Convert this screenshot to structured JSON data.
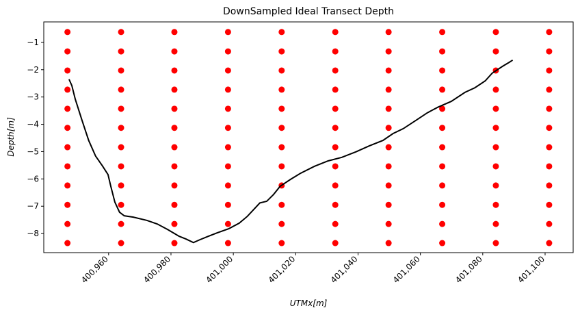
{
  "chart_data": {
    "type": "scatter",
    "title": "DownSampled Ideal Transect Depth",
    "xlabel": "UTMx[m]",
    "ylabel": "Depth[m]",
    "xlim": [
      400939.2,
      401109.0
    ],
    "ylim": [
      -8.7,
      -0.25
    ],
    "xticks": [
      {
        "value": 400960,
        "label": "400,960"
      },
      {
        "value": 400980,
        "label": "400,980"
      },
      {
        "value": 401000,
        "label": "401,000"
      },
      {
        "value": 401020,
        "label": "401,020"
      },
      {
        "value": 401040,
        "label": "401,040"
      },
      {
        "value": 401060,
        "label": "401,060"
      },
      {
        "value": 401080,
        "label": "401,080"
      },
      {
        "value": 401100,
        "label": "401,100"
      }
    ],
    "yticks": [
      {
        "value": -1,
        "label": "−1"
      },
      {
        "value": -2,
        "label": "−2"
      },
      {
        "value": -3,
        "label": "−3"
      },
      {
        "value": -4,
        "label": "−4"
      },
      {
        "value": -5,
        "label": "−5"
      },
      {
        "value": -6,
        "label": "−6"
      },
      {
        "value": -7,
        "label": "−7"
      },
      {
        "value": -8,
        "label": "−8"
      }
    ],
    "series": [
      {
        "type": "scatter",
        "color": "#ff0000",
        "x": [
          400946.8,
          400946.8,
          400946.8,
          400946.8,
          400946.8,
          400946.8,
          400946.8,
          400946.8,
          400946.8,
          400946.8,
          400946.8,
          400946.8,
          400964.0,
          400964.0,
          400964.0,
          400964.0,
          400964.0,
          400964.0,
          400964.0,
          400964.0,
          400964.0,
          400964.0,
          400964.0,
          400964.0,
          400981.1,
          400981.1,
          400981.1,
          400981.1,
          400981.1,
          400981.1,
          400981.1,
          400981.1,
          400981.1,
          400981.1,
          400981.1,
          400981.1,
          400998.3,
          400998.3,
          400998.3,
          400998.3,
          400998.3,
          400998.3,
          400998.3,
          400998.3,
          400998.3,
          400998.3,
          400998.3,
          400998.3,
          401015.5,
          401015.5,
          401015.5,
          401015.5,
          401015.5,
          401015.5,
          401015.5,
          401015.5,
          401015.5,
          401015.5,
          401015.5,
          401015.5,
          401032.7,
          401032.7,
          401032.7,
          401032.7,
          401032.7,
          401032.7,
          401032.7,
          401032.7,
          401032.7,
          401032.7,
          401032.7,
          401032.7,
          401049.8,
          401049.8,
          401049.8,
          401049.8,
          401049.8,
          401049.8,
          401049.8,
          401049.8,
          401049.8,
          401049.8,
          401049.8,
          401049.8,
          401067.0,
          401067.0,
          401067.0,
          401067.0,
          401067.0,
          401067.0,
          401067.0,
          401067.0,
          401067.0,
          401067.0,
          401067.0,
          401067.0,
          401084.2,
          401084.2,
          401084.2,
          401084.2,
          401084.2,
          401084.2,
          401084.2,
          401084.2,
          401084.2,
          401084.2,
          401084.2,
          401084.2,
          401101.3,
          401101.3,
          401101.3,
          401101.3,
          401101.3,
          401101.3,
          401101.3,
          401101.3,
          401101.3,
          401101.3,
          401101.3,
          401101.3
        ],
        "values": [
          -0.62,
          -1.33,
          -2.03,
          -2.73,
          -3.43,
          -4.13,
          -4.84,
          -5.54,
          -6.24,
          -6.95,
          -7.65,
          -8.35,
          -0.62,
          -1.33,
          -2.03,
          -2.73,
          -3.43,
          -4.13,
          -4.84,
          -5.54,
          -6.24,
          -6.95,
          -7.65,
          -8.35,
          -0.62,
          -1.33,
          -2.03,
          -2.73,
          -3.43,
          -4.13,
          -4.84,
          -5.54,
          -6.24,
          -6.95,
          -7.65,
          -8.35,
          -0.62,
          -1.33,
          -2.03,
          -2.73,
          -3.43,
          -4.13,
          -4.84,
          -5.54,
          -6.24,
          -6.95,
          -7.65,
          -8.35,
          -0.62,
          -1.33,
          -2.03,
          -2.73,
          -3.43,
          -4.13,
          -4.84,
          -5.54,
          -6.24,
          -6.95,
          -7.65,
          -8.35,
          -0.62,
          -1.33,
          -2.03,
          -2.73,
          -3.43,
          -4.13,
          -4.84,
          -5.54,
          -6.24,
          -6.95,
          -7.65,
          -8.35,
          -0.62,
          -1.33,
          -2.03,
          -2.73,
          -3.43,
          -4.13,
          -4.84,
          -5.54,
          -6.24,
          -6.95,
          -7.65,
          -8.35,
          -0.62,
          -1.33,
          -2.03,
          -2.73,
          -3.43,
          -4.13,
          -4.84,
          -5.54,
          -6.24,
          -6.95,
          -7.65,
          -8.35,
          -0.62,
          -1.33,
          -2.03,
          -2.73,
          -3.43,
          -4.13,
          -4.84,
          -5.54,
          -6.24,
          -6.95,
          -7.65,
          -8.35,
          -0.62,
          -1.33,
          -2.03,
          -2.73,
          -3.43,
          -4.13,
          -4.84,
          -5.54,
          -6.24,
          -6.95,
          -7.65,
          -8.35
        ]
      },
      {
        "type": "line",
        "color": "#000000",
        "x": [
          400947.3,
          400948.2,
          400949.3,
          400951.4,
          400953.6,
          400955.8,
          400958.0,
          400959.8,
          400960.7,
          400962.0,
          400963.5,
          400965.0,
          400967.9,
          400972.3,
          400975.6,
          400978.9,
          400982.6,
          400984.8,
          400987.2,
          400989.2,
          400992.0,
          400994.9,
          400998.6,
          401001.9,
          401004.5,
          401006.7,
          401008.5,
          401010.7,
          401012.9,
          401015.0,
          401018.3,
          401021.6,
          401026.0,
          401030.4,
          401034.8,
          401039.3,
          401043.6,
          401048.0,
          401051.2,
          401054.5,
          401058.9,
          401062.2,
          401065.5,
          401069.9,
          401074.3,
          401077.5,
          401080.8,
          401083.0,
          401086.3,
          401088.5,
          401089.6
        ],
        "values": [
          -2.35,
          -2.58,
          -3.08,
          -3.83,
          -4.59,
          -5.16,
          -5.52,
          -5.84,
          -6.27,
          -6.85,
          -7.22,
          -7.35,
          -7.4,
          -7.52,
          -7.65,
          -7.85,
          -8.1,
          -8.2,
          -8.33,
          -8.23,
          -8.1,
          -7.97,
          -7.82,
          -7.62,
          -7.37,
          -7.1,
          -6.88,
          -6.82,
          -6.57,
          -6.27,
          -6.02,
          -5.79,
          -5.54,
          -5.34,
          -5.21,
          -5.01,
          -4.79,
          -4.59,
          -4.34,
          -4.16,
          -3.83,
          -3.58,
          -3.38,
          -3.16,
          -2.83,
          -2.66,
          -2.41,
          -2.13,
          -1.88,
          -1.73,
          -1.65
        ]
      }
    ]
  }
}
